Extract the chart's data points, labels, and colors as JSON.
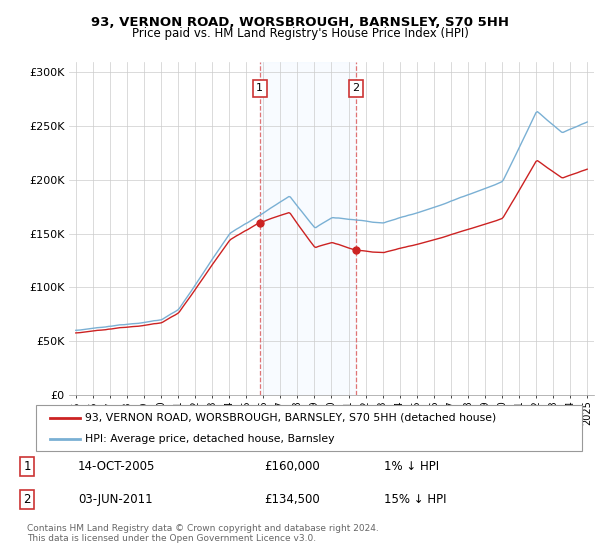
{
  "title": "93, VERNON ROAD, WORSBROUGH, BARNSLEY, S70 5HH",
  "subtitle": "Price paid vs. HM Land Registry's House Price Index (HPI)",
  "hpi_color": "#7ab0d4",
  "price_color": "#cc2222",
  "marker_color": "#cc2222",
  "shade_color": "#ddeeff",
  "dashed_color": "#dd6666",
  "legend_line1": "93, VERNON ROAD, WORSBROUGH, BARNSLEY, S70 5HH (detached house)",
  "legend_line2": "HPI: Average price, detached house, Barnsley",
  "footer": "Contains HM Land Registry data © Crown copyright and database right 2024.\nThis data is licensed under the Open Government Licence v3.0.",
  "table_row1": [
    "1",
    "14-OCT-2005",
    "£160,000",
    "1% ↓ HPI"
  ],
  "table_row2": [
    "2",
    "03-JUN-2011",
    "£134,500",
    "15% ↓ HPI"
  ],
  "ylim": [
    0,
    310000
  ],
  "yticks": [
    0,
    50000,
    100000,
    150000,
    200000,
    250000,
    300000
  ],
  "t1_year": 2005.79,
  "t2_year": 2011.42,
  "t1_price": 160000,
  "t2_price": 134500,
  "box_label_color": "#cc3333"
}
